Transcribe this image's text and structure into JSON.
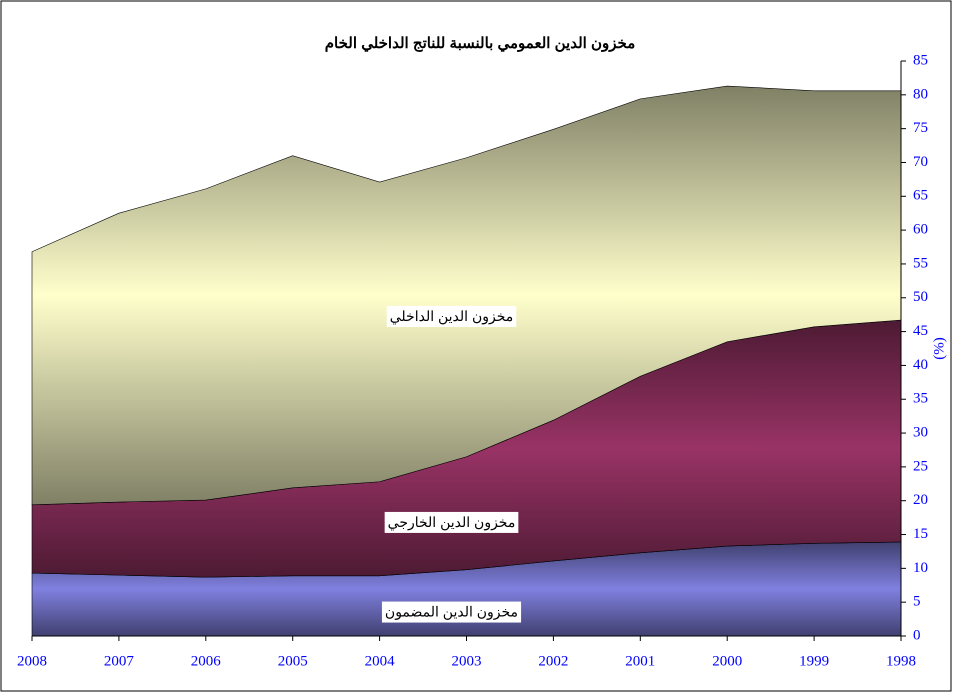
{
  "chart_data": {
    "type": "stacked_area",
    "title": "مخزون الدين العمومي بالنسبة للناتج الداخلي الخام",
    "y_label": "(%)",
    "categories": [
      "2008",
      "2007",
      "2006",
      "2005",
      "2004",
      "2003",
      "2002",
      "2001",
      "2000",
      "1999",
      "1998"
    ],
    "series": [
      {
        "name": "مخزون الدين المضمون",
        "color": "#8080e0",
        "values": [
          9.3,
          9.0,
          8.7,
          8.9,
          8.9,
          9.8,
          11.1,
          12.3,
          13.3,
          13.7,
          13.9
        ]
      },
      {
        "name": "مخزون الدين الخارجي",
        "color": "#993366",
        "values": [
          10.1,
          10.8,
          11.4,
          13.0,
          13.9,
          16.7,
          20.8,
          26.1,
          30.2,
          32.0,
          32.8
        ]
      },
      {
        "name": "مخزون الدين الداخلي",
        "color": "#ffffcc",
        "values": [
          37.4,
          42.7,
          46.0,
          49.1,
          44.3,
          44.2,
          43.0,
          41.0,
          37.8,
          34.9,
          33.9
        ]
      }
    ],
    "ylim": [
      0,
      85
    ],
    "yticks": [
      0,
      5,
      10,
      15,
      20,
      25,
      30,
      35,
      40,
      45,
      50,
      55,
      60,
      65,
      70,
      75,
      80,
      85
    ],
    "y_axis_side": "right",
    "axis_color": "#0000ff"
  }
}
